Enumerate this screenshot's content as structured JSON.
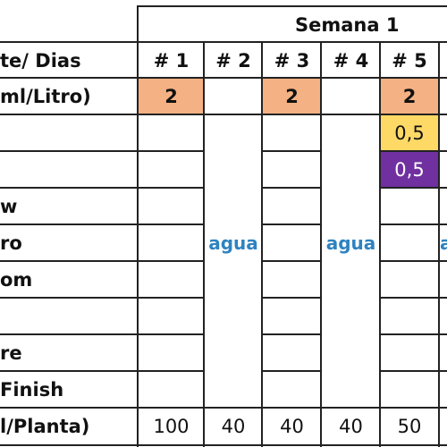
{
  "week_title": "Semana 1",
  "header_label": "te/ Dias",
  "days": [
    "# 1",
    "# 2",
    "# 3",
    "# 4",
    "# 5"
  ],
  "row_labels": [
    "ml/Litro)",
    "",
    "",
    "w",
    "ro",
    "om",
    "",
    "re",
    "Finish",
    "l/Planta)"
  ],
  "dose_row": [
    "2",
    "",
    "2",
    "",
    "2"
  ],
  "row_05_a": "0,5",
  "row_05_b": "0,5",
  "water_label": "agua",
  "water_partial": "a",
  "totals": [
    "100",
    "40",
    "40",
    "40",
    "50"
  ],
  "colors": {
    "dose_fill": "#f4b183",
    "yellow_fill": "#ffd966",
    "purple_fill": "#7030a0",
    "water_text": "#2e83c0",
    "grid": "#222222"
  }
}
